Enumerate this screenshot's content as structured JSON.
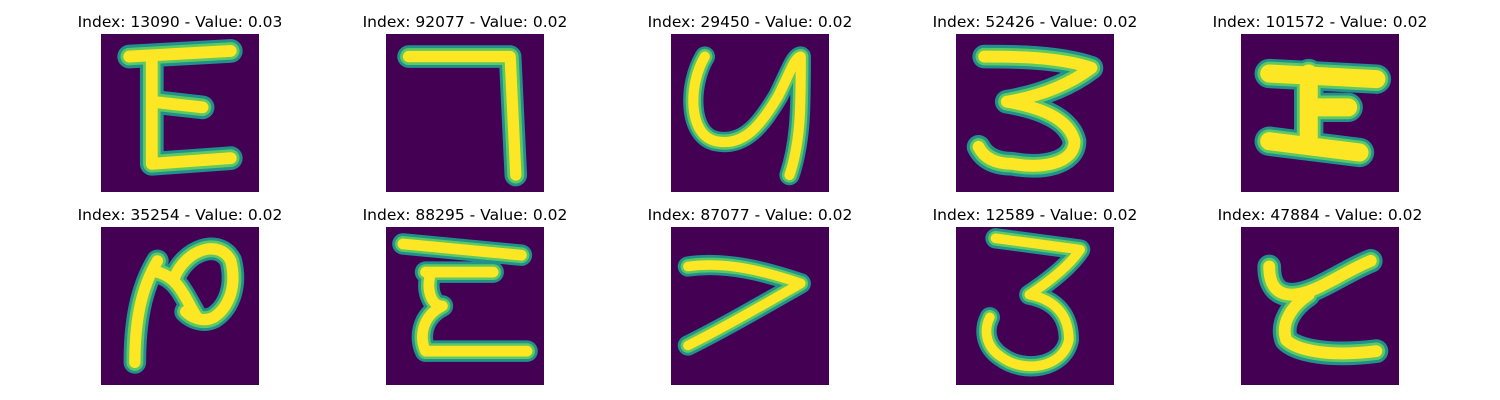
{
  "figure": {
    "background": "#ffffff",
    "image_background": "#440154",
    "glyph_colors": {
      "core": "#fde725",
      "edge": "#5ec962",
      "halo": "#21918c"
    },
    "panels": [
      {
        "title": "Index: 13090 - Value: 0.03",
        "glyph": "E-shape"
      },
      {
        "title": "Index: 92077 - Value: 0.02",
        "glyph": "7-shape"
      },
      {
        "title": "Index: 29450 - Value: 0.02",
        "glyph": "y-shape"
      },
      {
        "title": "Index: 52426 - Value: 0.02",
        "glyph": "3-shape"
      },
      {
        "title": "Index: 101572 - Value: 0.02",
        "glyph": "I-shape"
      },
      {
        "title": "Index: 35254 - Value: 0.02",
        "glyph": "N-shape"
      },
      {
        "title": "Index: 88295 - Value: 0.02",
        "glyph": "E-shape"
      },
      {
        "title": "Index: 87077 - Value: 0.02",
        "glyph": "7-shape"
      },
      {
        "title": "Index: 12589 - Value: 0.02",
        "glyph": "3-shape"
      },
      {
        "title": "Index: 47884 - Value: 0.02",
        "glyph": "z-shape"
      }
    ]
  }
}
